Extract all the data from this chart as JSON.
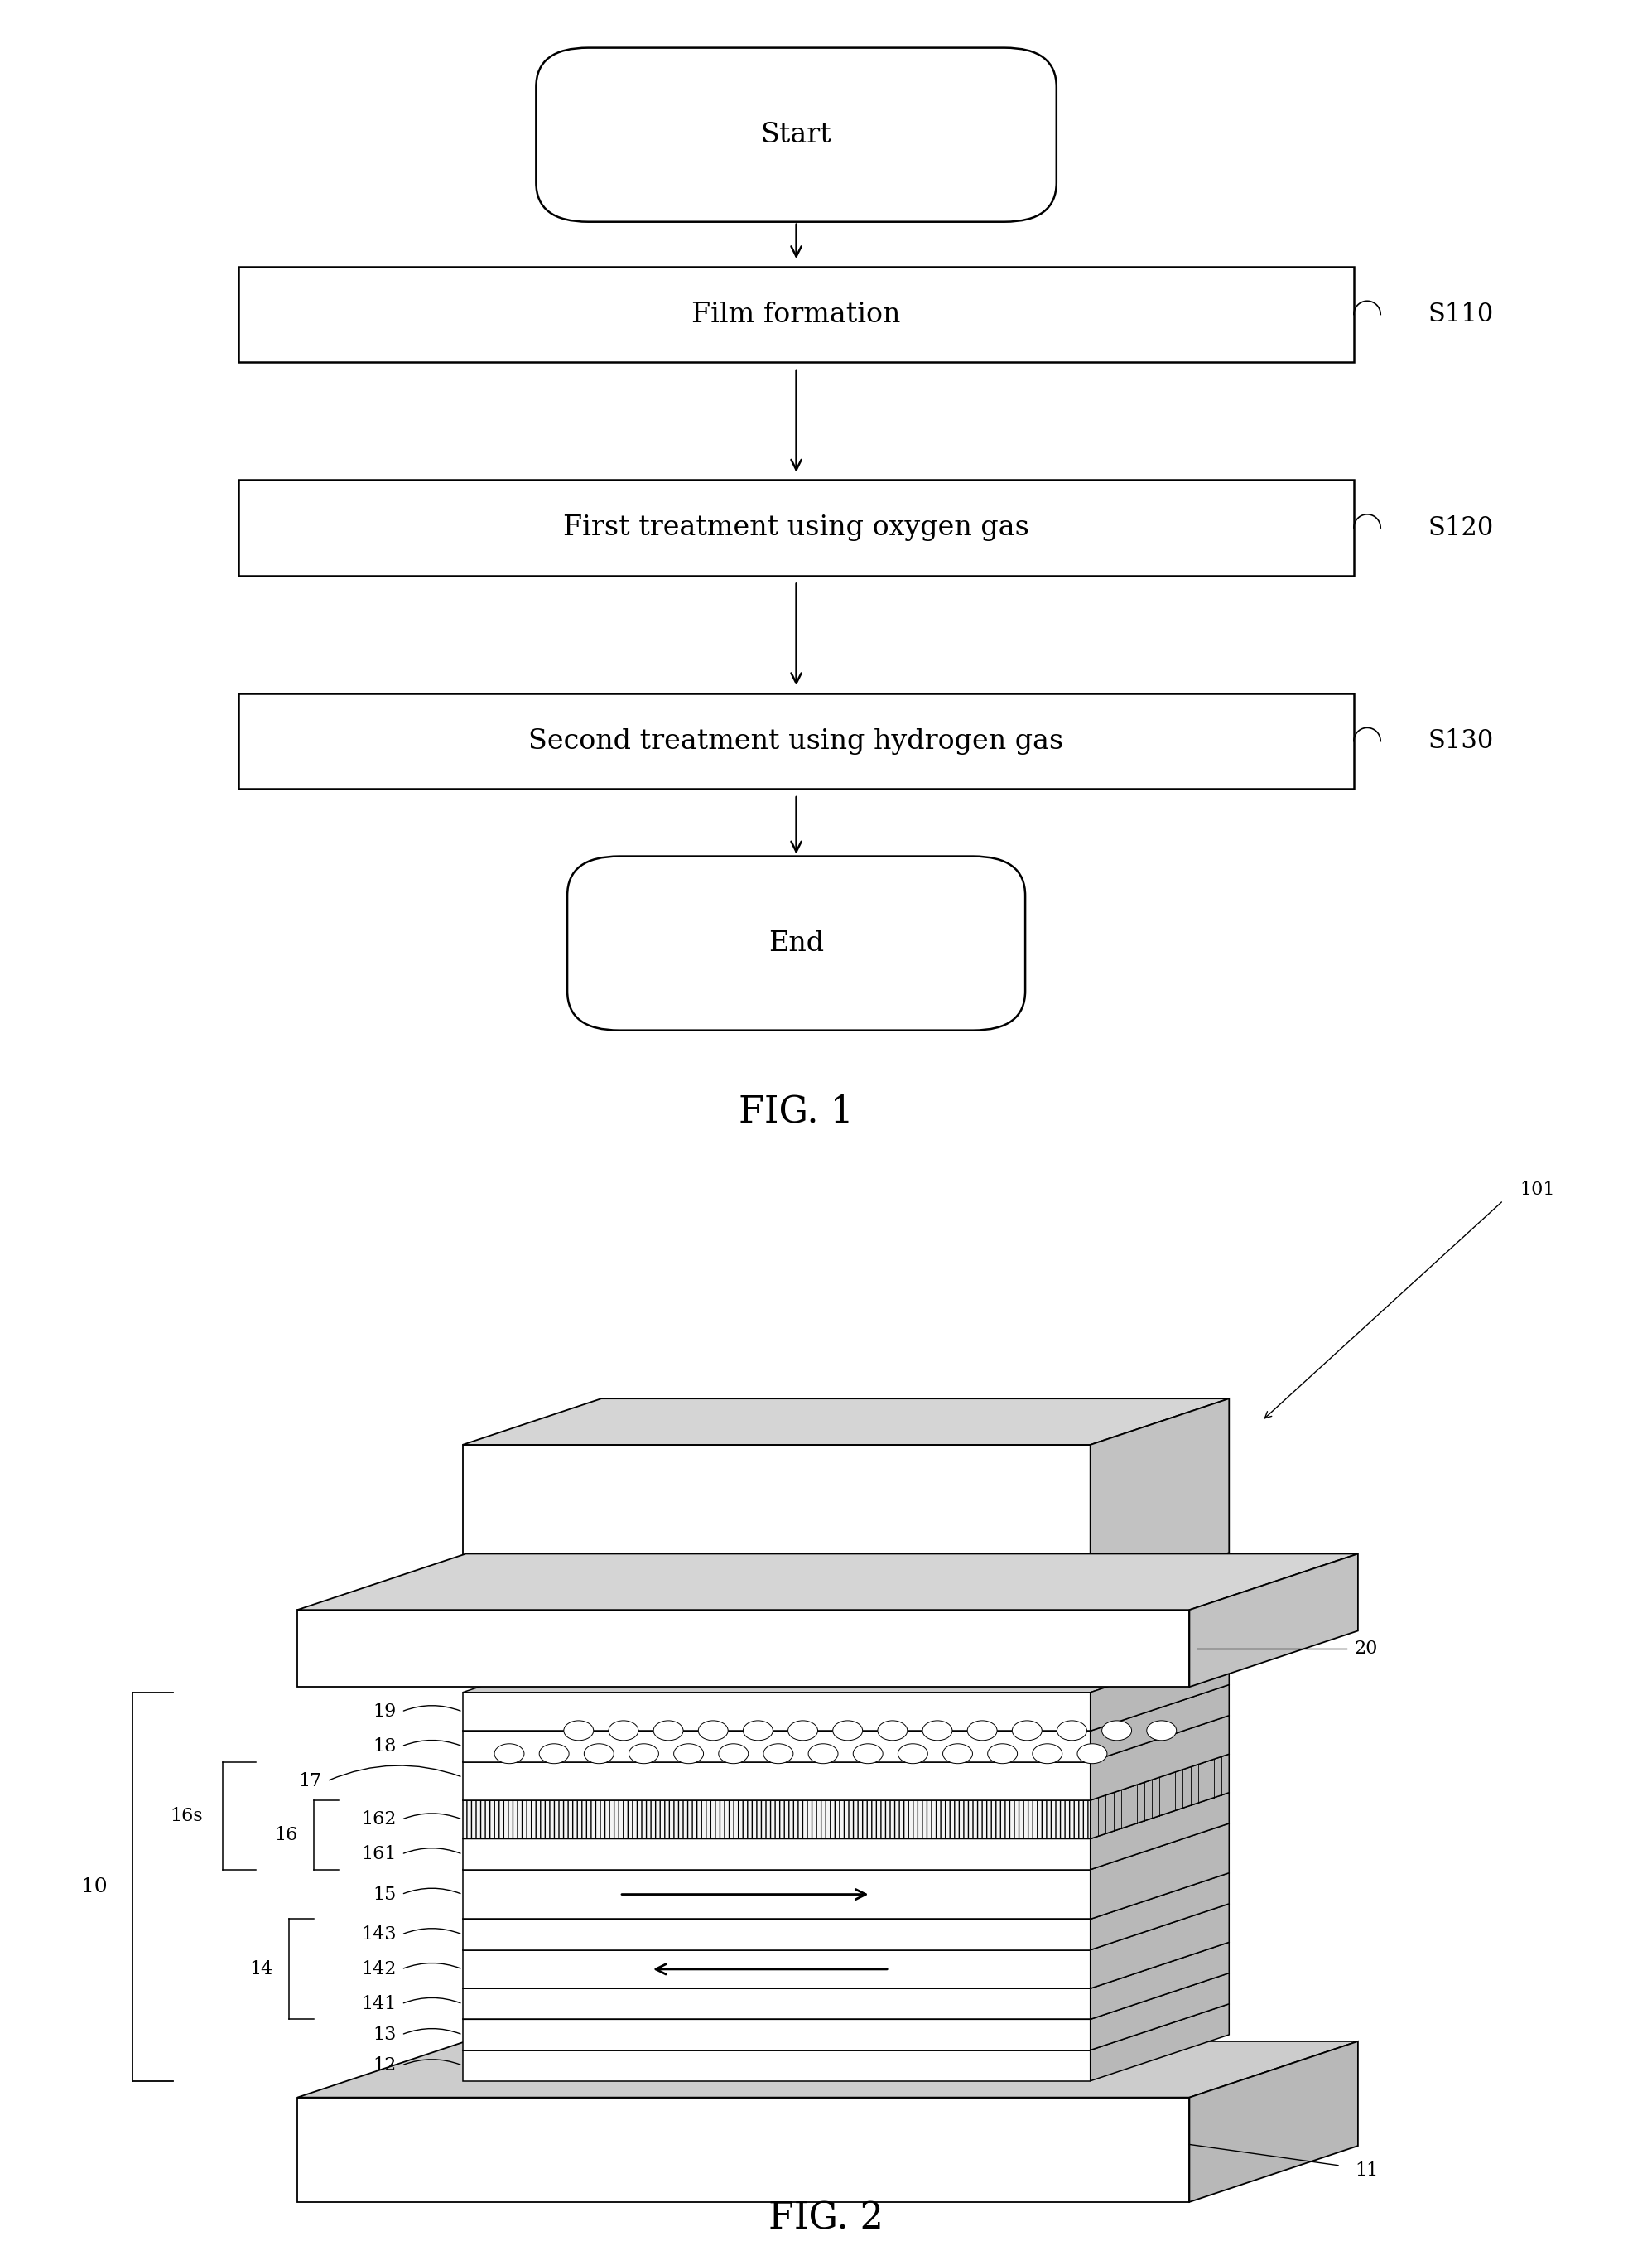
{
  "bg_color": "#ffffff",
  "fig1": {
    "title": "FIG. 1",
    "start_label": "Start",
    "end_label": "End",
    "boxes": [
      {
        "label": "Film formation",
        "step": "S110"
      },
      {
        "label": "First treatment using oxygen gas",
        "step": "S120"
      },
      {
        "label": "Second treatment using hydrogen gas",
        "step": "S130"
      }
    ]
  },
  "fig2": {
    "title": "FIG. 2",
    "labels": {
      "101": "101",
      "20": "20",
      "19": "19",
      "18": "18",
      "17": "17",
      "162": "162",
      "16": "16",
      "161": "161",
      "16s": "16s",
      "15": "15",
      "143": "143",
      "14": "14",
      "142": "142",
      "141": "141",
      "13": "13",
      "12": "12",
      "11": "11",
      "10": "10"
    }
  }
}
